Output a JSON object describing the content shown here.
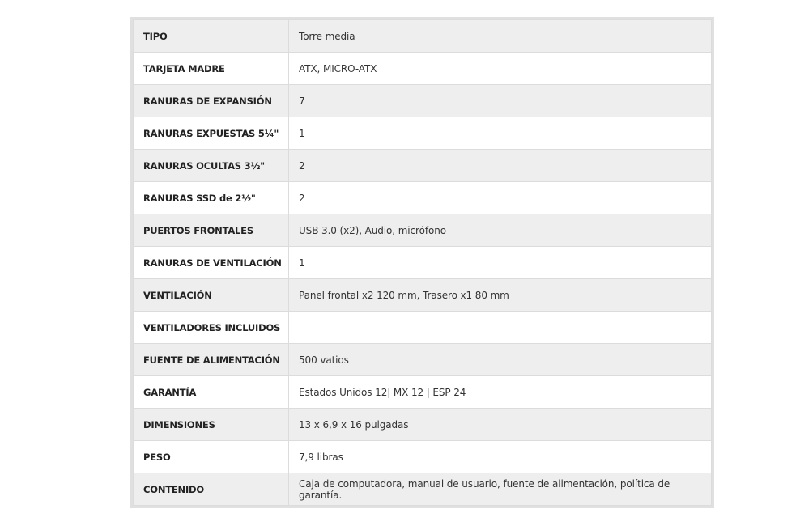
{
  "specs": [
    {
      "key": "TIPO",
      "value": "Torre media"
    },
    {
      "key": "TARJETA MADRE",
      "value": "ATX, MICRO-ATX"
    },
    {
      "key": "RANURAS DE EXPANSIÓN",
      "value": "7"
    },
    {
      "key": "RANURAS EXPUESTAS 5¼\"",
      "value": "1"
    },
    {
      "key": "RANURAS OCULTAS 3½\"",
      "value": "2"
    },
    {
      "key": "RANURAS SSD de 2½\"",
      "value": "2"
    },
    {
      "key": "PUERTOS FRONTALES",
      "value": "USB 3.0 (x2), Audio, micrófono"
    },
    {
      "key": "RANURAS DE VENTILACIÓN",
      "value": "1"
    },
    {
      "key": "VENTILACIÓN",
      "value": "Panel frontal x2 120 mm, Trasero x1 80 mm"
    },
    {
      "key": "VENTILADORES INCLUIDOS",
      "value": ""
    },
    {
      "key": "FUENTE DE ALIMENTACIÓN",
      "value": "500 vatios"
    },
    {
      "key": "GARANTÍA",
      "value": "Estados Unidos 12| MX 12 | ESP 24"
    },
    {
      "key": "DIMENSIONES",
      "value": "13 x 6,9 x 16 pulgadas"
    },
    {
      "key": "PESO",
      "value": "7,9 libras"
    },
    {
      "key": "CONTENIDO",
      "value": "Caja de computadora, manual de usuario, fuente de alimentación, política de garantía."
    }
  ]
}
